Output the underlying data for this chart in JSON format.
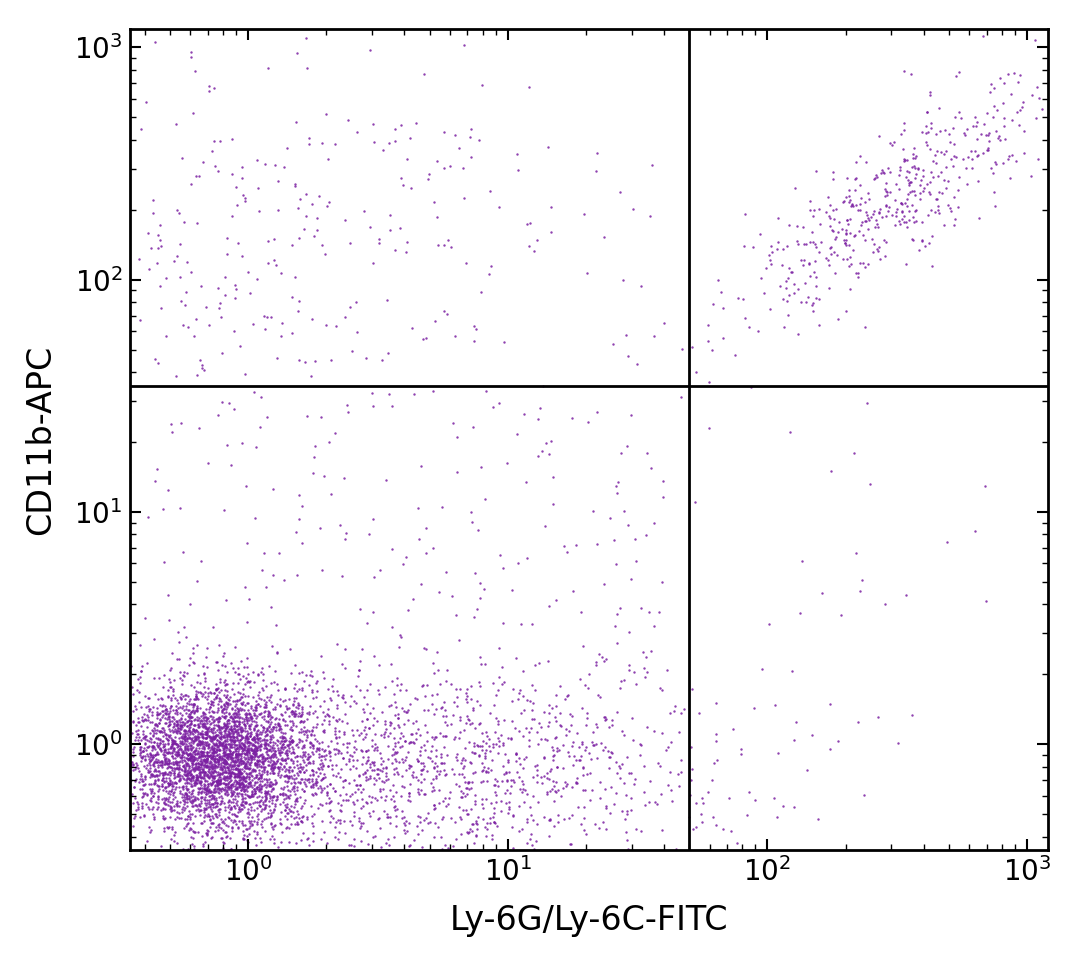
{
  "xlabel": "Ly-6G/Ly-6C-FITC",
  "ylabel": "CD11b-APC",
  "dot_color": "#7B1FA2",
  "background_color": "#ffffff",
  "xlim": [
    0.3,
    1500
  ],
  "ylim": [
    0.3,
    1500
  ],
  "gate_x": 50,
  "gate_y": 35,
  "xlabel_fontsize": 24,
  "ylabel_fontsize": 24,
  "tick_fontsize": 20,
  "dot_size": 3,
  "dot_alpha": 0.85
}
